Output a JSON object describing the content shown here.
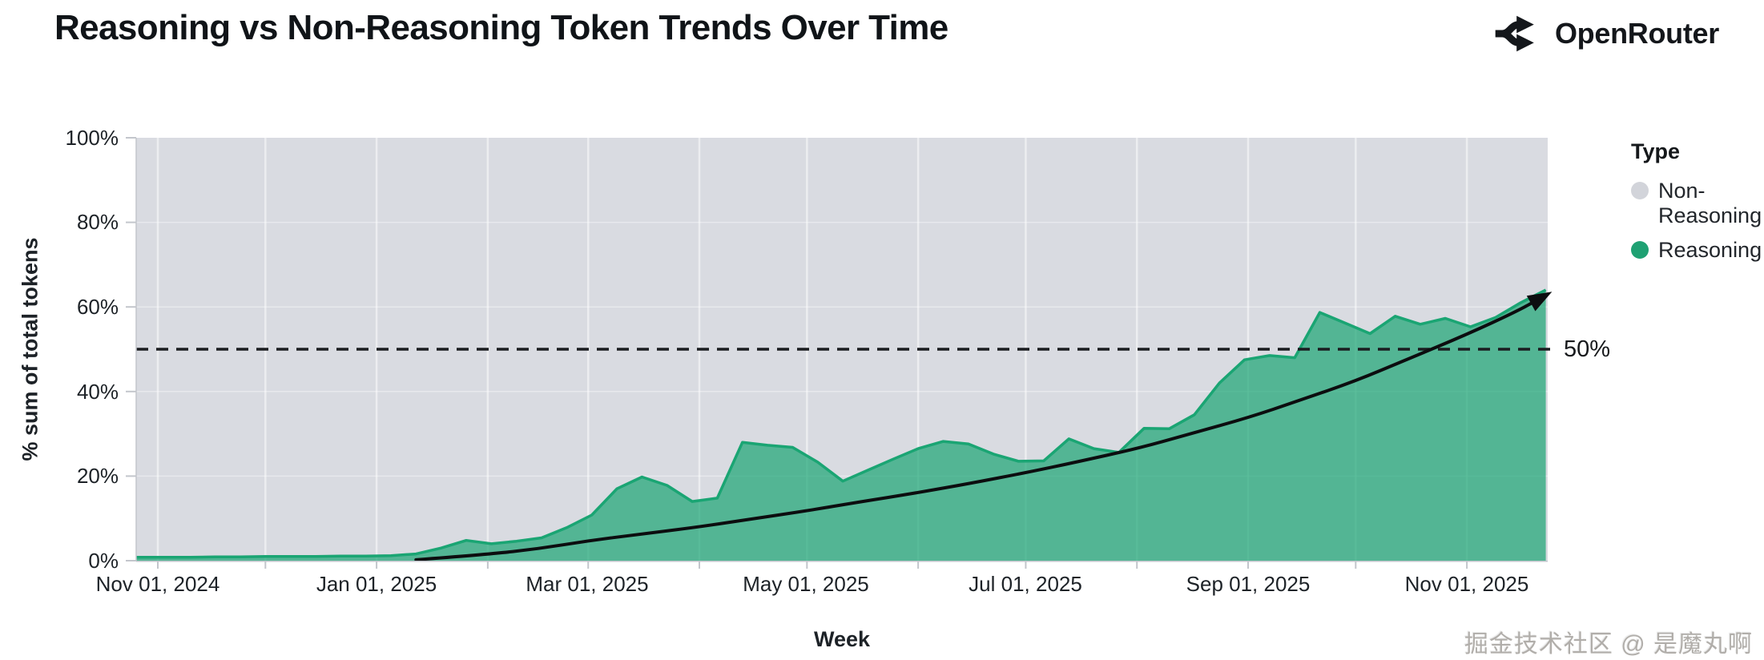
{
  "header": {
    "title": "Reasoning vs Non-Reasoning Token Trends Over Time",
    "brand": "OpenRouter"
  },
  "legend": {
    "title": "Type",
    "items": [
      {
        "label": "Non-Reasoning",
        "color": "#d2d4da"
      },
      {
        "label": "Reasoning",
        "color": "#1fa173"
      }
    ]
  },
  "watermark": "掘金技术社区 @ 是魔丸啊",
  "chart_data": {
    "type": "area",
    "title": "Reasoning vs Non-Reasoning Token Trends Over Time",
    "xlabel": "Week",
    "ylabel": "% sum of total tokens",
    "ylim": [
      0,
      100
    ],
    "grid": true,
    "legend_position": "right",
    "stacked_to_100": true,
    "y_tick_labels": [
      "0%",
      "20%",
      "40%",
      "60%",
      "80%",
      "100%"
    ],
    "x_tick_labels": [
      "Nov 01, 2024",
      "Jan 01, 2025",
      "Mar 01, 2025",
      "May 01, 2025",
      "Jul 01, 2025",
      "Sep 01, 2025",
      "Nov 01, 2025"
    ],
    "colors": {
      "reasoning_stroke": "#1aa573",
      "reasoning_fill": "rgba(26,165,115,0.7)",
      "non_reasoning_background": "#d9dbe1",
      "gridline_v": "rgba(255,255,255,0.5)",
      "gridline_h": "rgba(255,255,255,0.4)",
      "axis": "#c3c6cc",
      "reference_line": "#1b1d20",
      "trend": "#0c0d0f"
    },
    "series": [
      {
        "name": "Reasoning",
        "points": [
          [
            "2024-11-03",
            0.8
          ],
          [
            "2024-11-10",
            0.8
          ],
          [
            "2024-11-17",
            0.9
          ],
          [
            "2024-11-24",
            0.9
          ],
          [
            "2024-12-01",
            1.0
          ],
          [
            "2024-12-08",
            1.0
          ],
          [
            "2024-12-15",
            1.0
          ],
          [
            "2024-12-22",
            1.1
          ],
          [
            "2024-12-29",
            1.1
          ],
          [
            "2025-01-05",
            1.2
          ],
          [
            "2025-01-12",
            1.6
          ],
          [
            "2025-01-19",
            3.0
          ],
          [
            "2025-01-26",
            4.8
          ],
          [
            "2025-02-02",
            4.0
          ],
          [
            "2025-02-09",
            4.6
          ],
          [
            "2025-02-16",
            5.4
          ],
          [
            "2025-02-23",
            7.8
          ],
          [
            "2025-03-02",
            10.8
          ],
          [
            "2025-03-09",
            17.0
          ],
          [
            "2025-03-16",
            19.8
          ],
          [
            "2025-03-23",
            17.8
          ],
          [
            "2025-03-30",
            14.0
          ],
          [
            "2025-04-06",
            14.8
          ],
          [
            "2025-04-13",
            28.0
          ],
          [
            "2025-04-20",
            27.3
          ],
          [
            "2025-04-27",
            26.8
          ],
          [
            "2025-05-04",
            23.3
          ],
          [
            "2025-05-11",
            18.8
          ],
          [
            "2025-05-18",
            21.4
          ],
          [
            "2025-05-25",
            24.0
          ],
          [
            "2025-06-01",
            26.5
          ],
          [
            "2025-06-08",
            28.2
          ],
          [
            "2025-06-15",
            27.6
          ],
          [
            "2025-06-22",
            25.2
          ],
          [
            "2025-06-29",
            23.5
          ],
          [
            "2025-07-06",
            23.6
          ],
          [
            "2025-07-13",
            28.8
          ],
          [
            "2025-07-20",
            26.5
          ],
          [
            "2025-07-27",
            25.6
          ],
          [
            "2025-08-03",
            31.3
          ],
          [
            "2025-08-10",
            31.2
          ],
          [
            "2025-08-17",
            34.5
          ],
          [
            "2025-08-24",
            42.0
          ],
          [
            "2025-08-31",
            47.5
          ],
          [
            "2025-09-07",
            48.5
          ],
          [
            "2025-09-14",
            48.0
          ],
          [
            "2025-09-21",
            58.7
          ],
          [
            "2025-09-28",
            56.2
          ],
          [
            "2025-10-05",
            53.7
          ],
          [
            "2025-10-12",
            57.8
          ],
          [
            "2025-10-19",
            55.9
          ],
          [
            "2025-10-26",
            57.3
          ],
          [
            "2025-11-02",
            55.3
          ],
          [
            "2025-11-09",
            57.5
          ],
          [
            "2025-11-16",
            61.0
          ],
          [
            "2025-11-23",
            64.0
          ]
        ]
      },
      {
        "name": "Non-Reasoning",
        "note": "remainder to 100% (plot background)"
      }
    ],
    "annotations": {
      "reference_line": {
        "y": 50,
        "label": "50%",
        "style": "dashed"
      },
      "trend_arrow": {
        "points": [
          [
            "2025-01-12",
            0.2
          ],
          [
            "2025-02-01",
            1.5
          ],
          [
            "2025-02-15",
            2.8
          ],
          [
            "2025-03-01",
            4.7
          ],
          [
            "2025-03-15",
            6.2
          ],
          [
            "2025-04-01",
            8.0
          ],
          [
            "2025-04-15",
            9.8
          ],
          [
            "2025-05-01",
            11.8
          ],
          [
            "2025-05-15",
            13.8
          ],
          [
            "2025-06-01",
            16.1
          ],
          [
            "2025-06-15",
            18.2
          ],
          [
            "2025-07-01",
            20.8
          ],
          [
            "2025-07-15",
            23.3
          ],
          [
            "2025-08-01",
            26.5
          ],
          [
            "2025-08-15",
            29.8
          ],
          [
            "2025-09-01",
            33.8
          ],
          [
            "2025-09-15",
            37.8
          ],
          [
            "2025-10-01",
            42.5
          ],
          [
            "2025-10-15",
            47.5
          ],
          [
            "2025-11-01",
            53.5
          ],
          [
            "2025-11-15",
            59.0
          ],
          [
            "2025-11-22",
            62.3
          ]
        ]
      }
    }
  }
}
